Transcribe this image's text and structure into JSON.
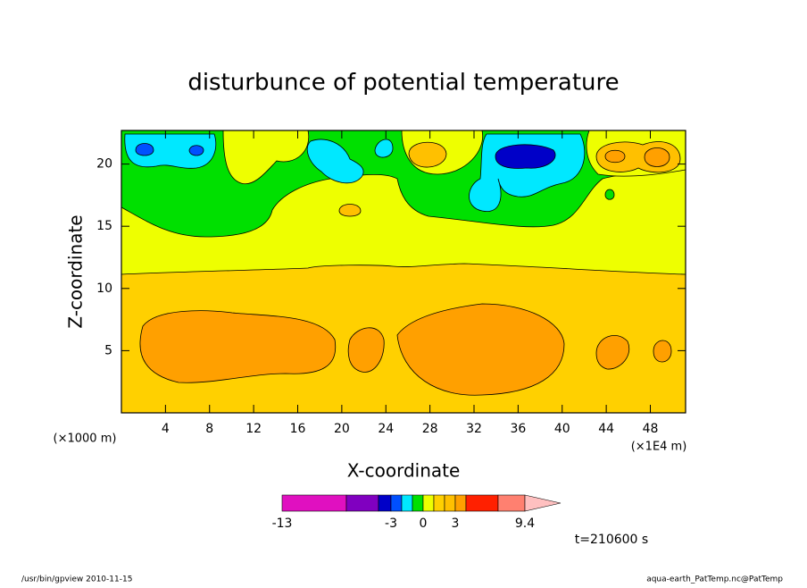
{
  "chart_data": {
    "type": "contour",
    "title": "disturbunce of potential temperature",
    "x_label": "X-coordinate",
    "y_label": "Z-coordinate",
    "x_unit": "(×1000 m)",
    "x_unit2": "(×1E4 m)",
    "xlim": [
      0,
      51.2
    ],
    "xticks": [
      4,
      8,
      12,
      16,
      20,
      24,
      28,
      32,
      36,
      40,
      44,
      48
    ],
    "ylim": [
      0,
      22.7
    ],
    "yticks": [
      5,
      10,
      15,
      20
    ],
    "colorbar": {
      "colors": [
        "#e010c0",
        "#8000c0",
        "#0000c8",
        "#0050ff",
        "#00e8ff",
        "#00e000",
        "#eeff00",
        "#ffd000",
        "#ffc000",
        "#ffa000",
        "#ff2000",
        "#ff8070",
        "#ffc0c0"
      ],
      "labels": [
        -13,
        -3,
        0,
        3,
        9.4
      ]
    },
    "time_label": "t=210600 s",
    "footer_left": "/usr/bin/gpview   2010-11-15",
    "footer_right": "aqua-earth_PatTemp.nc@PatTemp"
  }
}
